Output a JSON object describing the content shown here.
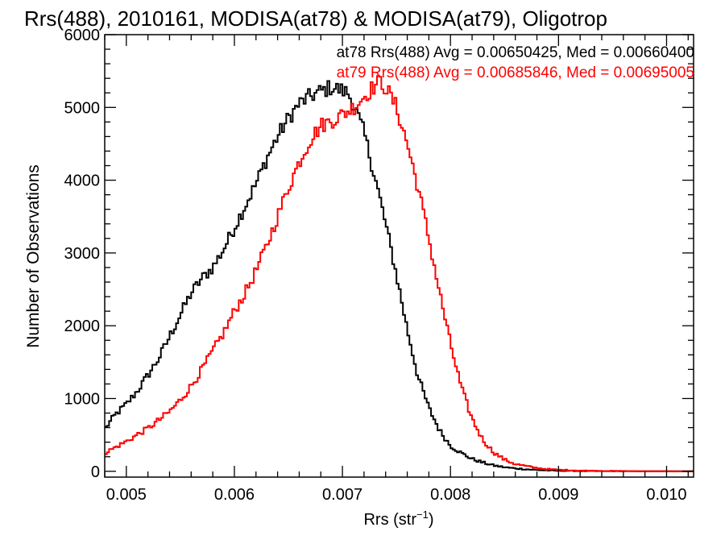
{
  "chart_data": {
    "type": "line",
    "title": "Rrs(488), 2010161, MODISA(at78) & MODISA(at79), Oligotrop",
    "xlabel": "Rrs (str",
    "xlabel_sup": "−1",
    "xlabel_close": ")",
    "ylabel": "Number of Observations",
    "xlim": [
      0.0048,
      0.01025
    ],
    "ylim": [
      -80,
      6000
    ],
    "xticks": [
      {
        "v": 0.005,
        "label": "0.005"
      },
      {
        "v": 0.006,
        "label": "0.006"
      },
      {
        "v": 0.007,
        "label": "0.007"
      },
      {
        "v": 0.008,
        "label": "0.008"
      },
      {
        "v": 0.009,
        "label": "0.009"
      },
      {
        "v": 0.01,
        "label": "0.010"
      }
    ],
    "yticks": [
      {
        "v": 0,
        "label": "0"
      },
      {
        "v": 1000,
        "label": "1000"
      },
      {
        "v": 2000,
        "label": "2000"
      },
      {
        "v": 3000,
        "label": "3000"
      },
      {
        "v": 4000,
        "label": "4000"
      },
      {
        "v": 5000,
        "label": "5000"
      },
      {
        "v": 6000,
        "label": "6000"
      }
    ],
    "grid": false,
    "legend_position": "top-right",
    "series": [
      {
        "name": "at78",
        "label": "at78 Rrs(488) Avg = 0.00650425, Med = 0.00660400",
        "color": "#000000",
        "x": [
          0.0048,
          0.0049,
          0.005,
          0.0051,
          0.0052,
          0.0053,
          0.0054,
          0.0055,
          0.0056,
          0.0057,
          0.0058,
          0.0059,
          0.006,
          0.0061,
          0.0062,
          0.0063,
          0.0064,
          0.0065,
          0.0066,
          0.0067,
          0.0068,
          0.0069,
          0.007,
          0.00705,
          0.0071,
          0.0072,
          0.0073,
          0.0074,
          0.0075,
          0.0076,
          0.0077,
          0.0078,
          0.0079,
          0.008,
          0.0081,
          0.0082,
          0.0083,
          0.0084,
          0.0085,
          0.0086,
          0.0087,
          0.0088,
          0.0089,
          0.009,
          0.0092,
          0.0094,
          0.0096,
          0.0098,
          0.01,
          0.01025
        ],
        "y": [
          580,
          780,
          920,
          1100,
          1320,
          1550,
          1850,
          2150,
          2450,
          2650,
          2800,
          3050,
          3350,
          3650,
          3950,
          4300,
          4600,
          4850,
          5050,
          5150,
          5220,
          5280,
          5230,
          5200,
          5050,
          4650,
          4050,
          3400,
          2700,
          1950,
          1300,
          870,
          560,
          350,
          250,
          170,
          120,
          80,
          55,
          40,
          28,
          18,
          12,
          8,
          4,
          2,
          1,
          0,
          0,
          0
        ]
      },
      {
        "name": "at79",
        "label": "at79 Rrs(488) Avg = 0.00685846, Med = 0.00695005",
        "color": "#ff0000",
        "x": [
          0.0048,
          0.0049,
          0.005,
          0.0051,
          0.0052,
          0.0053,
          0.0054,
          0.0055,
          0.0056,
          0.0057,
          0.0058,
          0.0059,
          0.006,
          0.0061,
          0.0062,
          0.0063,
          0.0064,
          0.0065,
          0.0066,
          0.0067,
          0.0068,
          0.0069,
          0.007,
          0.0071,
          0.0072,
          0.0073,
          0.00735,
          0.0074,
          0.0075,
          0.0076,
          0.0077,
          0.0078,
          0.0079,
          0.008,
          0.0081,
          0.0082,
          0.0083,
          0.0084,
          0.0085,
          0.0086,
          0.0087,
          0.0088,
          0.0089,
          0.009,
          0.0092,
          0.0094,
          0.0096,
          0.0098,
          0.01,
          0.01025
        ],
        "y": [
          250,
          330,
          410,
          500,
          590,
          700,
          820,
          980,
          1170,
          1400,
          1650,
          1900,
          2200,
          2450,
          2750,
          3100,
          3500,
          3900,
          4250,
          4550,
          4750,
          4820,
          4900,
          5000,
          5150,
          5300,
          5350,
          5280,
          5000,
          4500,
          3900,
          3200,
          2450,
          1750,
          1150,
          720,
          430,
          260,
          160,
          100,
          70,
          45,
          30,
          20,
          10,
          5,
          3,
          1,
          0,
          0
        ]
      }
    ]
  }
}
